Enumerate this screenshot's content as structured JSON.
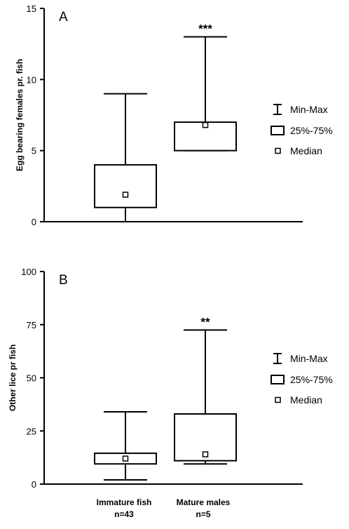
{
  "colors": {
    "axis": "#000000",
    "box_fill": "#ffffff"
  },
  "chart_data": [
    {
      "type": "box",
      "panel_label": "A",
      "ylabel": "Egg bearing females pr. fish",
      "ylim": [
        0,
        15
      ],
      "yticks": [
        0,
        5,
        10,
        15
      ],
      "categories": [
        "Immature fish",
        "Mature males"
      ],
      "boxes": [
        {
          "category": "Immature fish",
          "min": 0,
          "q1": 1,
          "median": 1.9,
          "q3": 4,
          "max": 9,
          "significance": ""
        },
        {
          "category": "Mature males",
          "min": 5,
          "q1": 5,
          "median": 6.8,
          "q3": 7,
          "max": 13,
          "significance": "***"
        }
      ],
      "legend": [
        "Min-Max",
        "25%-75%",
        "Median"
      ]
    },
    {
      "type": "box",
      "panel_label": "B",
      "ylabel": "Other lice pr fish",
      "ylim": [
        0,
        100
      ],
      "yticks": [
        0,
        25,
        50,
        75,
        100
      ],
      "categories": [
        "Immature fish",
        "Mature males"
      ],
      "boxes": [
        {
          "category": "Immature fish",
          "min": 2,
          "q1": 9.5,
          "median": 12,
          "q3": 14.5,
          "max": 34,
          "significance": ""
        },
        {
          "category": "Mature males",
          "min": 9.5,
          "q1": 11,
          "median": 14,
          "q3": 33,
          "max": 72.5,
          "significance": "**"
        }
      ],
      "legend": [
        "Min-Max",
        "25%-75%",
        "Median"
      ]
    }
  ],
  "x_labels": [
    {
      "name": "Immature fish",
      "n": "n=43"
    },
    {
      "name": "Mature males",
      "n": "n=5"
    }
  ]
}
